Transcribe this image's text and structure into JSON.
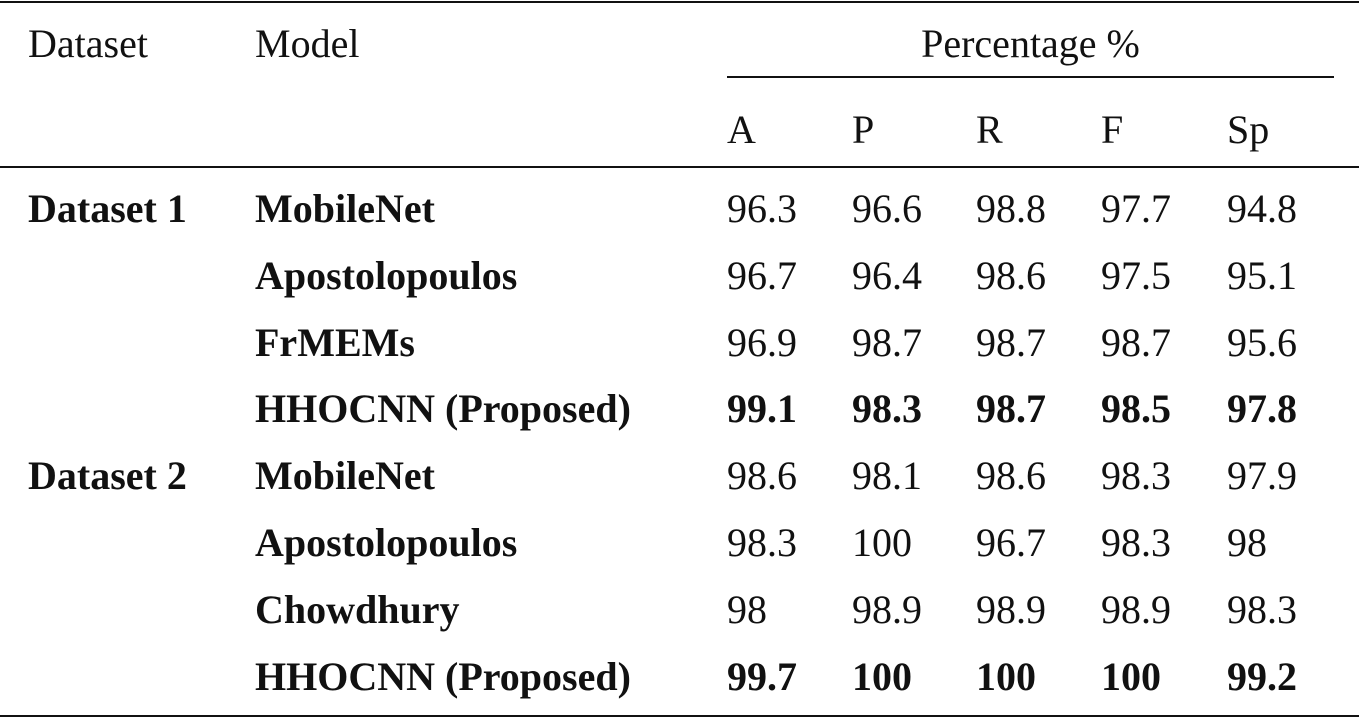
{
  "table": {
    "header": {
      "dataset": "Dataset",
      "model": "Model",
      "group": "Percentage %",
      "metrics": [
        "A",
        "P",
        "R",
        "F",
        "Sp"
      ]
    },
    "groups": [
      {
        "dataset": "Dataset 1",
        "rows": [
          {
            "model": "MobileNet",
            "values": [
              96.3,
              96.6,
              98.8,
              97.7,
              94.8
            ],
            "bold": false
          },
          {
            "model": "Apostolopoulos",
            "values": [
              96.7,
              96.4,
              98.6,
              97.5,
              95.1
            ],
            "bold": false
          },
          {
            "model": "FrMEMs",
            "values": [
              96.9,
              98.7,
              98.7,
              98.7,
              95.6
            ],
            "bold": false
          },
          {
            "model": "HHOCNN (Proposed)",
            "values": [
              99.1,
              98.3,
              98.7,
              98.5,
              97.8
            ],
            "bold": true
          }
        ]
      },
      {
        "dataset": "Dataset 2",
        "rows": [
          {
            "model": "MobileNet",
            "values": [
              98.6,
              98.1,
              98.6,
              98.3,
              97.9
            ],
            "bold": false
          },
          {
            "model": "Apostolopoulos",
            "values": [
              98.3,
              100,
              96.7,
              98.3,
              98
            ],
            "bold": false
          },
          {
            "model": "Chowdhury",
            "values": [
              98,
              98.9,
              98.9,
              98.9,
              98.3
            ],
            "bold": false
          },
          {
            "model": "HHOCNN (Proposed)",
            "values": [
              99.7,
              100,
              100,
              100,
              99.2
            ],
            "bold": true
          }
        ]
      }
    ]
  }
}
